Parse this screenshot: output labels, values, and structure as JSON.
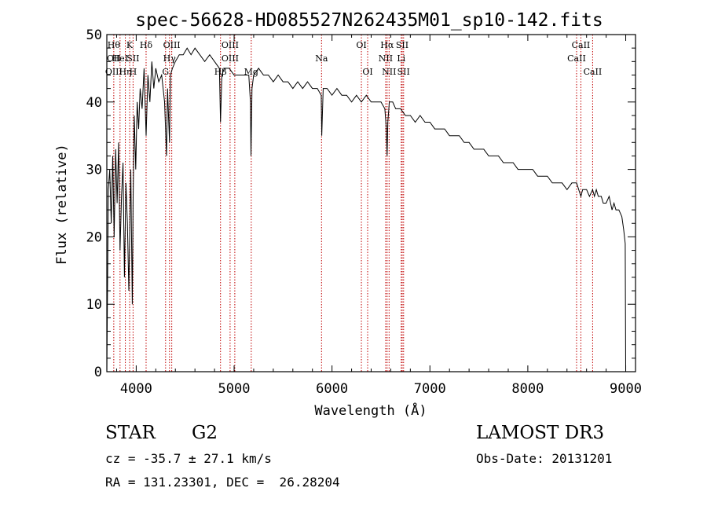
{
  "chart_data": {
    "type": "line",
    "title": "spec-56628-HD085527N262435M01_sp10-142.fits",
    "xlabel": "Wavelength (Å)",
    "ylabel": "Flux (relative)",
    "xlim": [
      3700,
      9100
    ],
    "ylim": [
      0,
      50
    ],
    "xticks": [
      4000,
      5000,
      6000,
      7000,
      8000,
      9000
    ],
    "yticks": [
      0,
      10,
      20,
      30,
      40,
      50
    ],
    "grid": false,
    "series": [
      {
        "name": "spectrum",
        "x": [
          3700,
          3715,
          3730,
          3745,
          3760,
          3775,
          3790,
          3805,
          3820,
          3835,
          3850,
          3865,
          3880,
          3895,
          3910,
          3925,
          3933,
          3945,
          3960,
          3968,
          3980,
          3995,
          4010,
          4025,
          4040,
          4060,
          4080,
          4101,
          4120,
          4140,
          4160,
          4180,
          4200,
          4230,
          4260,
          4290,
          4310,
          4320,
          4330,
          4340,
          4350,
          4370,
          4400,
          4440,
          4480,
          4520,
          4560,
          4600,
          4650,
          4700,
          4750,
          4800,
          4850,
          4861,
          4875,
          4900,
          4950,
          5000,
          5050,
          5100,
          5150,
          5167,
          5172,
          5183,
          5200,
          5250,
          5300,
          5350,
          5400,
          5450,
          5500,
          5550,
          5600,
          5650,
          5700,
          5750,
          5800,
          5850,
          5890,
          5895,
          5910,
          5950,
          6000,
          6050,
          6100,
          6150,
          6200,
          6250,
          6300,
          6350,
          6400,
          6450,
          6500,
          6540,
          6555,
          6563,
          6570,
          6585,
          6620,
          6650,
          6700,
          6750,
          6800,
          6850,
          6900,
          6950,
          7000,
          7050,
          7100,
          7150,
          7200,
          7250,
          7300,
          7350,
          7400,
          7450,
          7500,
          7550,
          7600,
          7650,
          7700,
          7750,
          7800,
          7850,
          7900,
          7950,
          8000,
          8050,
          8100,
          8150,
          8200,
          8250,
          8300,
          8350,
          8400,
          8450,
          8498,
          8520,
          8542,
          8560,
          8600,
          8630,
          8662,
          8680,
          8700,
          8720,
          8750,
          8770,
          8800,
          8830,
          8860,
          8880,
          8900,
          8930,
          8960,
          8980,
          8995,
          9000
        ],
        "y": [
          0,
          27,
          30,
          22,
          32,
          20,
          33,
          25,
          34,
          18,
          26,
          31,
          14,
          28,
          22,
          12,
          20,
          30,
          10,
          25,
          38,
          30,
          40,
          36,
          42,
          39,
          45,
          35,
          44,
          40,
          46,
          42,
          45,
          43,
          44,
          40,
          32,
          42,
          38,
          34,
          44,
          45,
          46,
          47,
          47,
          48,
          47,
          48,
          47,
          46,
          47,
          46,
          45,
          37,
          44,
          45,
          45,
          44,
          44,
          44,
          44,
          40,
          32,
          42,
          44,
          45,
          44,
          44,
          43,
          44,
          43,
          43,
          42,
          43,
          42,
          43,
          42,
          42,
          41,
          35,
          42,
          42,
          41,
          42,
          41,
          41,
          40,
          41,
          40,
          41,
          40,
          40,
          40,
          39,
          36,
          32,
          37,
          40,
          40,
          39,
          39,
          38,
          38,
          37,
          38,
          37,
          37,
          36,
          36,
          36,
          35,
          35,
          35,
          34,
          34,
          33,
          33,
          33,
          32,
          32,
          32,
          31,
          31,
          31,
          30,
          30,
          30,
          30,
          29,
          29,
          29,
          28,
          28,
          28,
          27,
          28,
          28,
          27,
          26,
          27,
          27,
          26,
          27,
          26,
          27,
          26,
          26,
          25,
          25,
          26,
          24,
          25,
          24,
          24,
          23,
          21,
          19,
          0
        ]
      }
    ],
    "lines": [
      {
        "x": 3771,
        "labels": [
          "Hθ",
          "OII",
          "OIII"
        ]
      },
      {
        "x": 3835,
        "labels": [
          "",
          "HeI",
          ""
        ]
      },
      {
        "x": 3889,
        "labels": [
          "",
          "",
          "Hη"
        ]
      },
      {
        "x": 3933,
        "labels": [
          "K",
          "",
          ""
        ]
      },
      {
        "x": 3968,
        "labels": [
          "",
          "SII",
          "H"
        ]
      },
      {
        "x": 4101,
        "labels": [
          "Hδ",
          "",
          ""
        ]
      },
      {
        "x": 4300,
        "labels": [
          "",
          "",
          "G"
        ]
      },
      {
        "x": 4340,
        "labels": [
          "",
          "Hγ",
          ""
        ]
      },
      {
        "x": 4363,
        "labels": [
          "OIII",
          "",
          ""
        ]
      },
      {
        "x": 4861,
        "labels": [
          "",
          "",
          "Hβ"
        ]
      },
      {
        "x": 4959,
        "labels": [
          "OIII",
          "OIII",
          ""
        ]
      },
      {
        "x": 5007,
        "labels": [
          "",
          "",
          ""
        ]
      },
      {
        "x": 5175,
        "labels": [
          "",
          "",
          "Mg"
        ]
      },
      {
        "x": 5893,
        "labels": [
          "",
          "Na",
          ""
        ]
      },
      {
        "x": 6300,
        "labels": [
          "OI",
          "",
          ""
        ]
      },
      {
        "x": 6364,
        "labels": [
          "",
          "",
          "OI"
        ]
      },
      {
        "x": 6548,
        "labels": [
          "",
          "NII",
          ""
        ]
      },
      {
        "x": 6563,
        "labels": [
          "Hα",
          "",
          ""
        ]
      },
      {
        "x": 6583,
        "labels": [
          "",
          "",
          "NII"
        ]
      },
      {
        "x": 6707,
        "labels": [
          "",
          "Li",
          ""
        ]
      },
      {
        "x": 6717,
        "labels": [
          "SII",
          "",
          ""
        ]
      },
      {
        "x": 6731,
        "labels": [
          "",
          "",
          "SII"
        ]
      },
      {
        "x": 8498,
        "labels": [
          "",
          "CaII",
          ""
        ]
      },
      {
        "x": 8542,
        "labels": [
          "CaII",
          "",
          ""
        ]
      },
      {
        "x": 8662,
        "labels": [
          "",
          "",
          "CaII"
        ]
      }
    ]
  },
  "info": {
    "object_type": "STAR",
    "subclass": "G2",
    "survey": "LAMOST DR3",
    "redshift_line": "cz = -35.7 ± 27.1 km/s",
    "obs_date_line": "Obs-Date: 20131201",
    "coords_line": "RA = 131.23301, DEC =  26.28204"
  },
  "colors": {
    "axis": "#000000",
    "spectrum": "#000000",
    "line_marker": "#c00000"
  }
}
